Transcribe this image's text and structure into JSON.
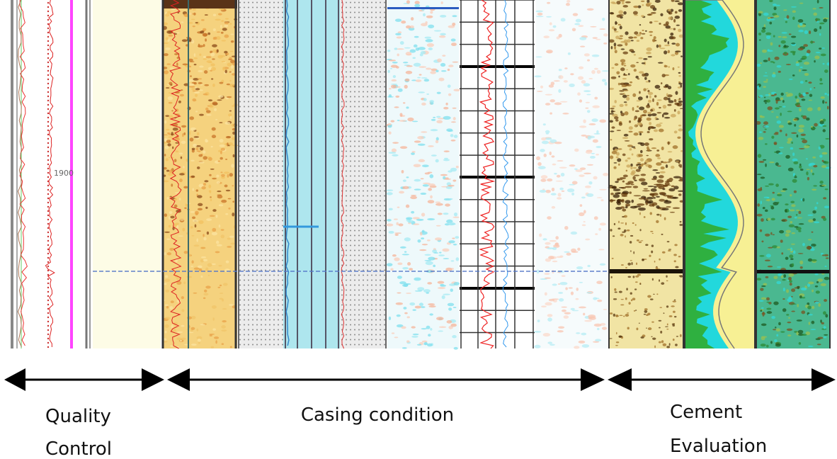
{
  "depth_label": "1900",
  "sections": [
    {
      "lines": [
        "Quality",
        "Control"
      ]
    },
    {
      "lines": [
        "Casing condition"
      ]
    },
    {
      "lines": [
        "Cement",
        "Evaluation"
      ]
    }
  ]
}
